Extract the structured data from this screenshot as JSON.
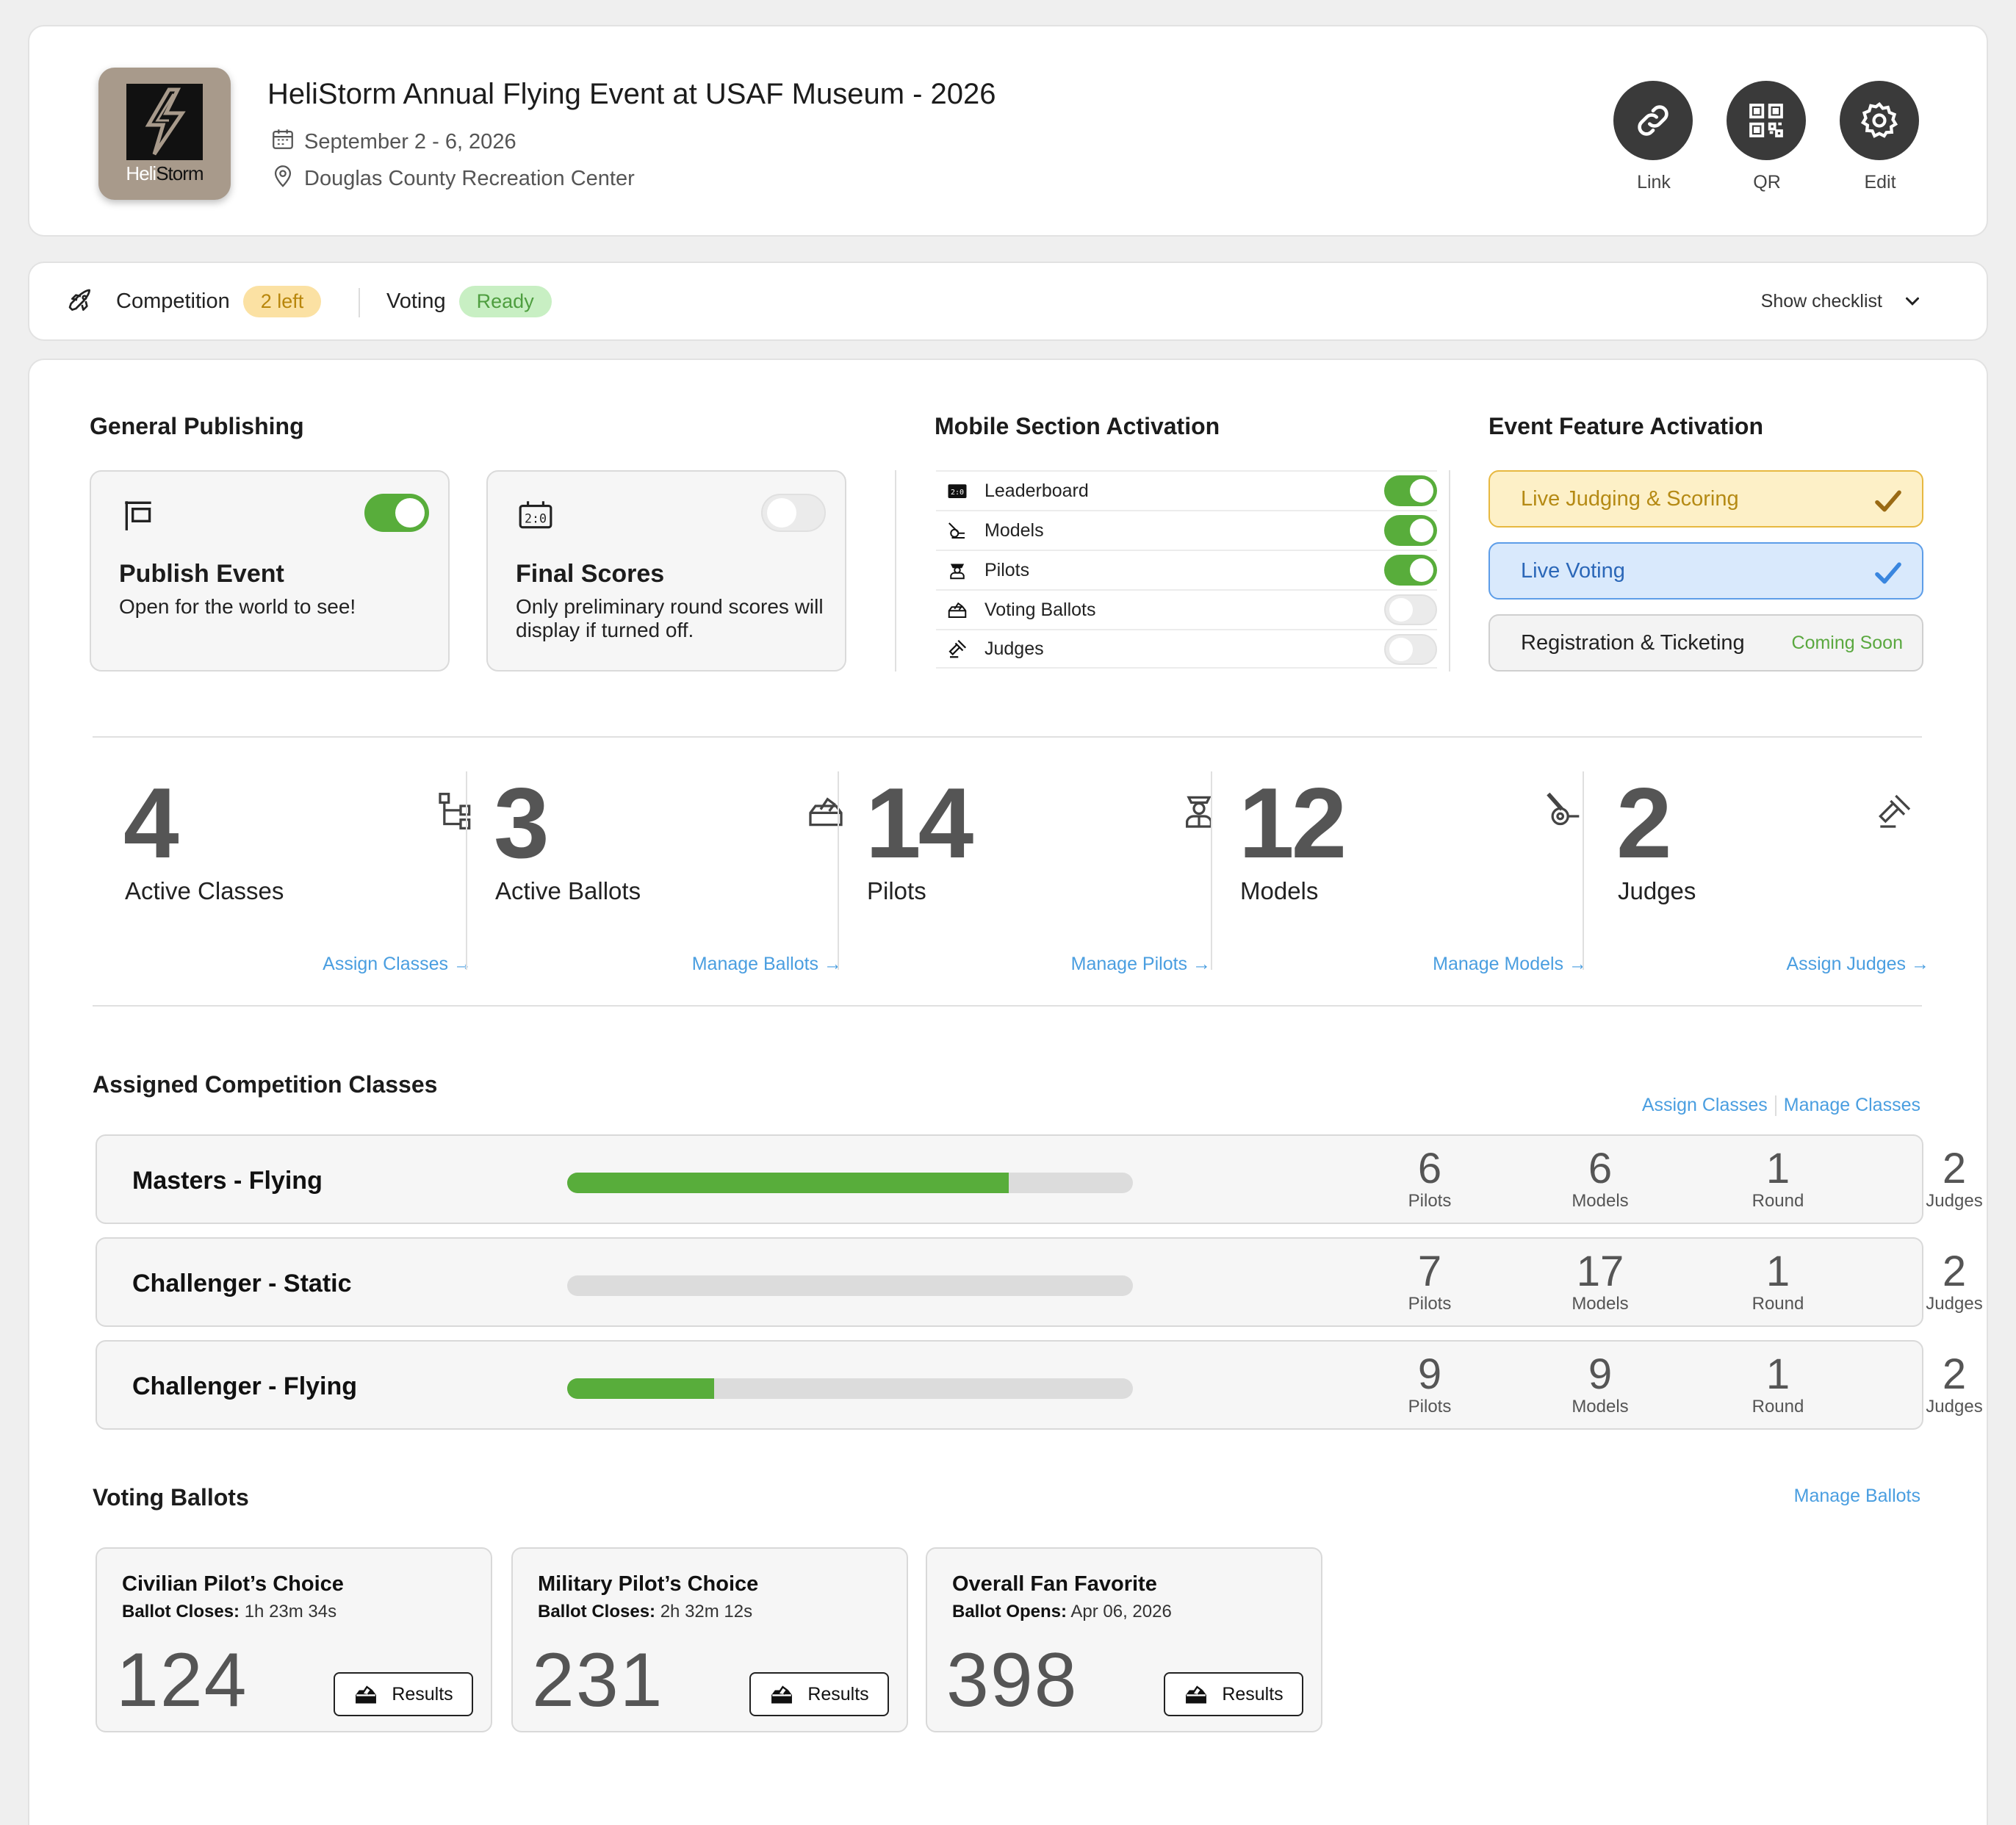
{
  "event": {
    "title": "HeliStorm Annual Flying Event at USAF Museum - 2026",
    "dates": "September 2 - 6, 2026",
    "location": "Douglas County Recreation Center",
    "logo_text_a": "Heli",
    "logo_text_b": "Storm"
  },
  "header_actions": {
    "link": "Link",
    "qr": "QR",
    "edit": "Edit"
  },
  "status": {
    "competition_label": "Competition",
    "competition_badge": "2 left",
    "voting_label": "Voting",
    "voting_badge": "Ready",
    "checklist": "Show checklist"
  },
  "general_publishing": {
    "title": "General Publishing",
    "publish": {
      "title": "Publish Event",
      "desc": "Open for the world to see!",
      "on": true
    },
    "final_scores": {
      "title": "Final Scores",
      "desc": "Only preliminary round scores will display if turned off.",
      "on": false
    }
  },
  "mobile": {
    "title": "Mobile Section Activation",
    "items": [
      {
        "label": "Leaderboard",
        "on": true,
        "icon": "scoreboard-icon"
      },
      {
        "label": "Models",
        "on": true,
        "icon": "helicopter-icon"
      },
      {
        "label": "Pilots",
        "on": true,
        "icon": "pilot-icon"
      },
      {
        "label": "Voting Ballots",
        "on": false,
        "icon": "ballot-box-icon"
      },
      {
        "label": "Judges",
        "on": false,
        "icon": "gavel-icon"
      }
    ]
  },
  "features": {
    "title": "Event Feature Activation",
    "judging": "Live Judging & Scoring",
    "voting": "Live Voting",
    "registration": "Registration & Ticketing",
    "registration_status": "Coming Soon"
  },
  "stats": [
    {
      "value": "4",
      "label": "Active Classes",
      "link": "Assign Classes →"
    },
    {
      "value": "3",
      "label": "Active Ballots",
      "link": "Manage Ballots →"
    },
    {
      "value": "14",
      "label": "Pilots",
      "link": "Manage Pilots →"
    },
    {
      "value": "12",
      "label": "Models",
      "link": "Manage Models →"
    },
    {
      "value": "2",
      "label": "Judges",
      "link": "Assign Judges →"
    }
  ],
  "classes": {
    "title": "Assigned Competition Classes",
    "assign_link": "Assign Classes",
    "manage_link": "Manage Classes",
    "units": {
      "pilots": "Pilots",
      "models": "Models",
      "round": "Round",
      "judges": "Judges"
    },
    "rows": [
      {
        "name": "Masters - Flying",
        "progress": 0.78,
        "pilots": "6",
        "models": "6",
        "rounds": "1",
        "judges": "2"
      },
      {
        "name": "Challenger - Static",
        "progress": 0,
        "pilots": "7",
        "models": "17",
        "rounds": "1",
        "judges": "2"
      },
      {
        "name": "Challenger - Flying",
        "progress": 0.26,
        "pilots": "9",
        "models": "9",
        "rounds": "1",
        "judges": "2"
      }
    ]
  },
  "ballots": {
    "title": "Voting Ballots",
    "manage_link": "Manage Ballots",
    "results_label": "Results",
    "items": [
      {
        "name": "Civilian Pilot’s Choice",
        "status_label": "Ballot Closes:",
        "status_value": " 1h 23m 34s",
        "count": "124"
      },
      {
        "name": "Military Pilot’s Choice",
        "status_label": "Ballot Closes:",
        "status_value": " 2h 32m 12s",
        "count": "231"
      },
      {
        "name": "Overall Fan Favorite",
        "status_label": "Ballot Opens:",
        "status_value": " Apr 06, 2026",
        "count": "398"
      }
    ]
  },
  "colors": {
    "accent_green": "#58ad3b",
    "link_blue": "#4a9ee0",
    "badge_yellow": "#fbe1a3",
    "badge_green": "#c8efc3"
  }
}
